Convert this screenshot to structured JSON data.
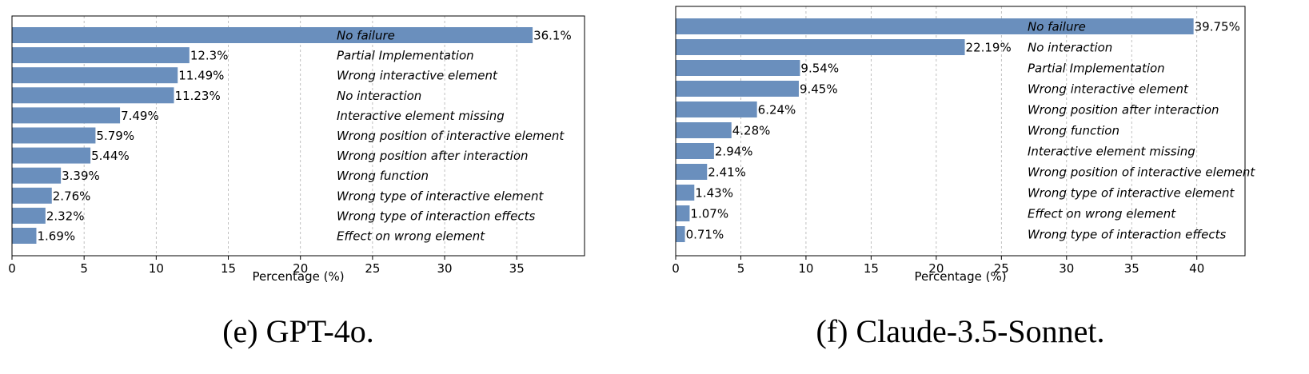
{
  "chart_data": [
    {
      "type": "bar",
      "orientation": "horizontal",
      "caption": "(e) GPT-4o.",
      "xlabel": "Percentage (%)",
      "xlim": [
        0,
        39.7
      ],
      "xticks": [
        0,
        5,
        10,
        15,
        20,
        25,
        30,
        35
      ],
      "grid": "vertical-dashed",
      "bar_color": "#6a8fbd",
      "categories": [
        "No failure",
        "Partial Implementation",
        "Wrong interactive element",
        "No interaction",
        "Interactive element missing",
        "Wrong position of interactive element",
        "Wrong position after interaction",
        "Wrong function",
        "Wrong type of interactive element",
        "Wrong type of interaction effects",
        "Effect on wrong element"
      ],
      "values": [
        36.1,
        12.3,
        11.49,
        11.23,
        7.49,
        5.79,
        5.44,
        3.39,
        2.76,
        2.32,
        1.69
      ],
      "value_labels": [
        "36.1%",
        "12.3%",
        "11.49%",
        "11.23%",
        "7.49%",
        "5.79%",
        "5.44%",
        "3.39%",
        "2.76%",
        "2.32%",
        "1.69%"
      ]
    },
    {
      "type": "bar",
      "orientation": "horizontal",
      "caption": "(f) Claude-3.5-Sonnet.",
      "xlabel": "Percentage (%)",
      "xlim": [
        0,
        43.7
      ],
      "xticks": [
        0,
        5,
        10,
        15,
        20,
        25,
        30,
        35,
        40
      ],
      "grid": "vertical-dashed",
      "bar_color": "#6a8fbd",
      "categories": [
        "No failure",
        "No interaction",
        "Partial Implementation",
        "Wrong interactive element",
        "Wrong position after interaction",
        "Wrong function",
        "Interactive element missing",
        "Wrong position of interactive element",
        "Wrong type of interactive element",
        "Effect on wrong element",
        "Wrong type of interaction effects"
      ],
      "values": [
        39.75,
        22.19,
        9.54,
        9.45,
        6.24,
        4.28,
        2.94,
        2.41,
        1.43,
        1.07,
        0.71
      ],
      "value_labels": [
        "39.75%",
        "22.19%",
        "9.54%",
        "9.45%",
        "6.24%",
        "4.28%",
        "2.94%",
        "2.41%",
        "1.43%",
        "1.07%",
        "0.71%"
      ]
    }
  ]
}
